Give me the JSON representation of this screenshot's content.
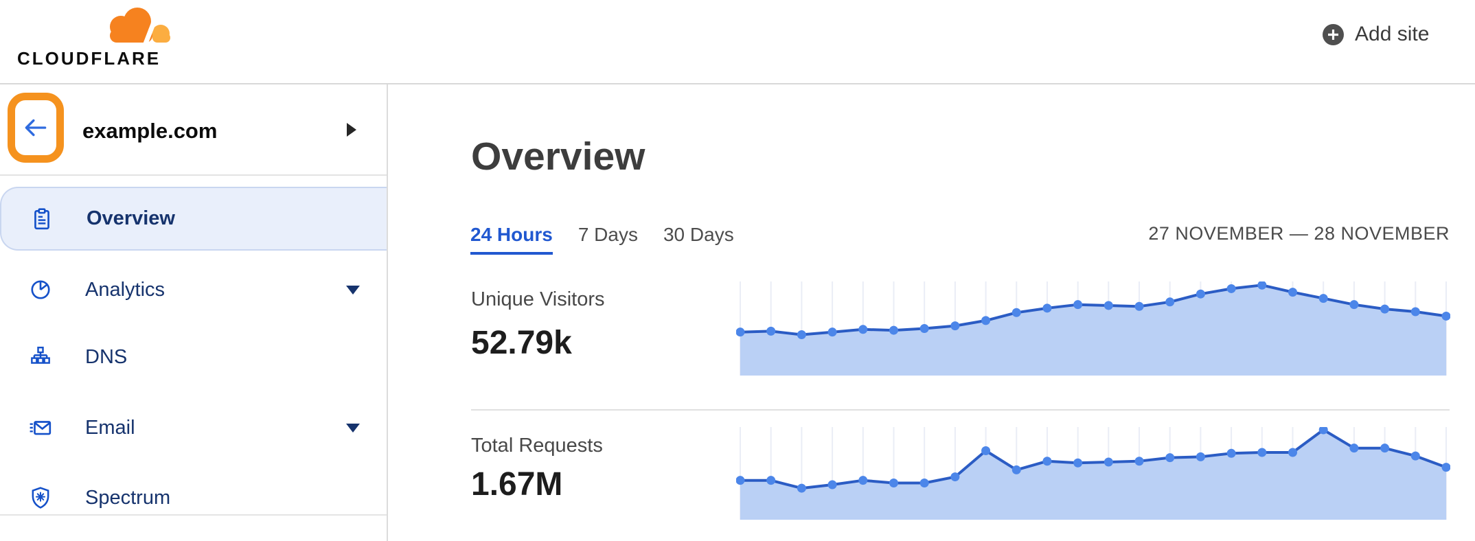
{
  "topbar": {
    "logo_text": "CLOUDFLARE",
    "add_site_label": "Add site"
  },
  "sidebar": {
    "site_name": "example.com",
    "items": [
      {
        "label": "Overview",
        "icon": "clipboard-icon",
        "selected": true,
        "has_caret": false
      },
      {
        "label": "Analytics",
        "icon": "pie-chart-icon",
        "selected": false,
        "has_caret": true
      },
      {
        "label": "DNS",
        "icon": "hierarchy-icon",
        "selected": false,
        "has_caret": false
      },
      {
        "label": "Email",
        "icon": "envelope-icon",
        "selected": false,
        "has_caret": true
      },
      {
        "label": "Spectrum",
        "icon": "shield-icon",
        "selected": false,
        "has_caret": false
      }
    ]
  },
  "main": {
    "title": "Overview",
    "tabs": [
      {
        "label": "24 Hours",
        "active": true
      },
      {
        "label": "7 Days",
        "active": false
      },
      {
        "label": "30 Days",
        "active": false
      }
    ],
    "date_range": "27 NOVEMBER — 28 NOVEMBER",
    "metrics": [
      {
        "label": "Unique Visitors",
        "value": "52.79k"
      },
      {
        "label": "Total Requests",
        "value": "1.67M"
      }
    ]
  },
  "chart_data": [
    {
      "type": "area",
      "title": "Unique Visitors",
      "total_shown": "52.79k",
      "x_range": "27 November — 28 November (hourly, 24h window)",
      "x_labels_shown": false,
      "y_axis_shown": false,
      "grid": "vertical line per data point",
      "legend": "none",
      "values_percent_of_max": [
        46,
        47,
        43,
        46,
        49,
        48,
        50,
        53,
        59,
        68,
        73,
        77,
        76,
        75,
        80,
        89,
        95,
        99,
        91,
        84,
        77,
        72,
        69,
        64
      ],
      "ylim": [
        0,
        100
      ]
    },
    {
      "type": "area",
      "title": "Total Requests",
      "total_shown": "1.67M",
      "x_range": "27 November — 28 November (hourly, 24h window)",
      "x_labels_shown": false,
      "y_axis_shown": false,
      "grid": "vertical line per data point",
      "legend": "none",
      "values_percent_of_max": [
        42,
        42,
        33,
        37,
        42,
        39,
        39,
        46,
        76,
        54,
        64,
        62,
        63,
        64,
        68,
        69,
        73,
        74,
        74,
        100,
        79,
        79,
        70,
        57
      ],
      "ylim": [
        0,
        100
      ]
    }
  ],
  "colors": {
    "line_blue": "#2b5cc4",
    "dot_blue": "#4c86e9",
    "fill_blue": "#bad0f5",
    "grid_line": "#eaedf6",
    "selected_bg": "#e9effb",
    "sidebar_navy": "#16336d",
    "icon_blue": "#1551c9",
    "annotation_orange": "#f5921e",
    "tab_active_blue": "#2158d0",
    "logo_orange": "#f6821f",
    "logo_light_orange": "#fbad41"
  }
}
